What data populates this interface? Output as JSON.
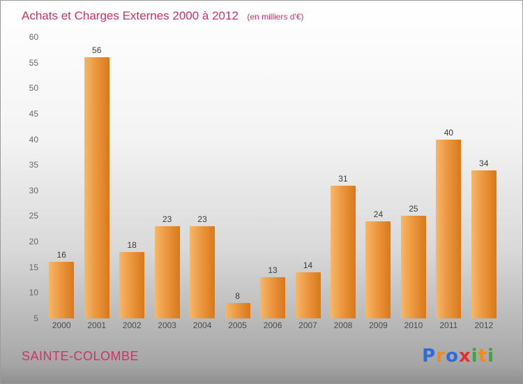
{
  "header": {
    "title": "Achats et Charges Externes 2000 à 2012",
    "subtitle": "(en milliers d'€)"
  },
  "footer": {
    "location": "SAINTE-COLOMBE"
  },
  "logo": {
    "name": "Proxiti",
    "letters": [
      {
        "ch": "P",
        "color": "#2f6bd9"
      },
      {
        "ch": "r",
        "color": "#f08a1d"
      },
      {
        "ch": "o",
        "color": "#2f6bd9"
      },
      {
        "ch": "x",
        "color": "#e03030"
      },
      {
        "ch": "i",
        "color": "#3fa33f"
      },
      {
        "ch": "t",
        "color": "#f08a1d"
      },
      {
        "ch": "i",
        "color": "#3fa33f"
      }
    ]
  },
  "colors": {
    "title": "#cc3366",
    "bar_light": "#f6b867",
    "bar_dark": "#d8781c",
    "axis_text": "#666666",
    "value_text": "#3a3a3a"
  },
  "chart_data": {
    "type": "bar",
    "title": "Achats et Charges Externes 2000 à 2012 (en milliers d'€)",
    "categories": [
      "2000",
      "2001",
      "2002",
      "2003",
      "2004",
      "2005",
      "2006",
      "2007",
      "2008",
      "2009",
      "2010",
      "2011",
      "2012"
    ],
    "values": [
      16,
      56,
      18,
      23,
      23,
      8,
      13,
      14,
      31,
      24,
      25,
      40,
      34
    ],
    "xlabel": "",
    "ylabel": "",
    "ylim": [
      5,
      60
    ],
    "ytick_step": 5,
    "grid": false,
    "legend": false,
    "bar_labels": true
  }
}
